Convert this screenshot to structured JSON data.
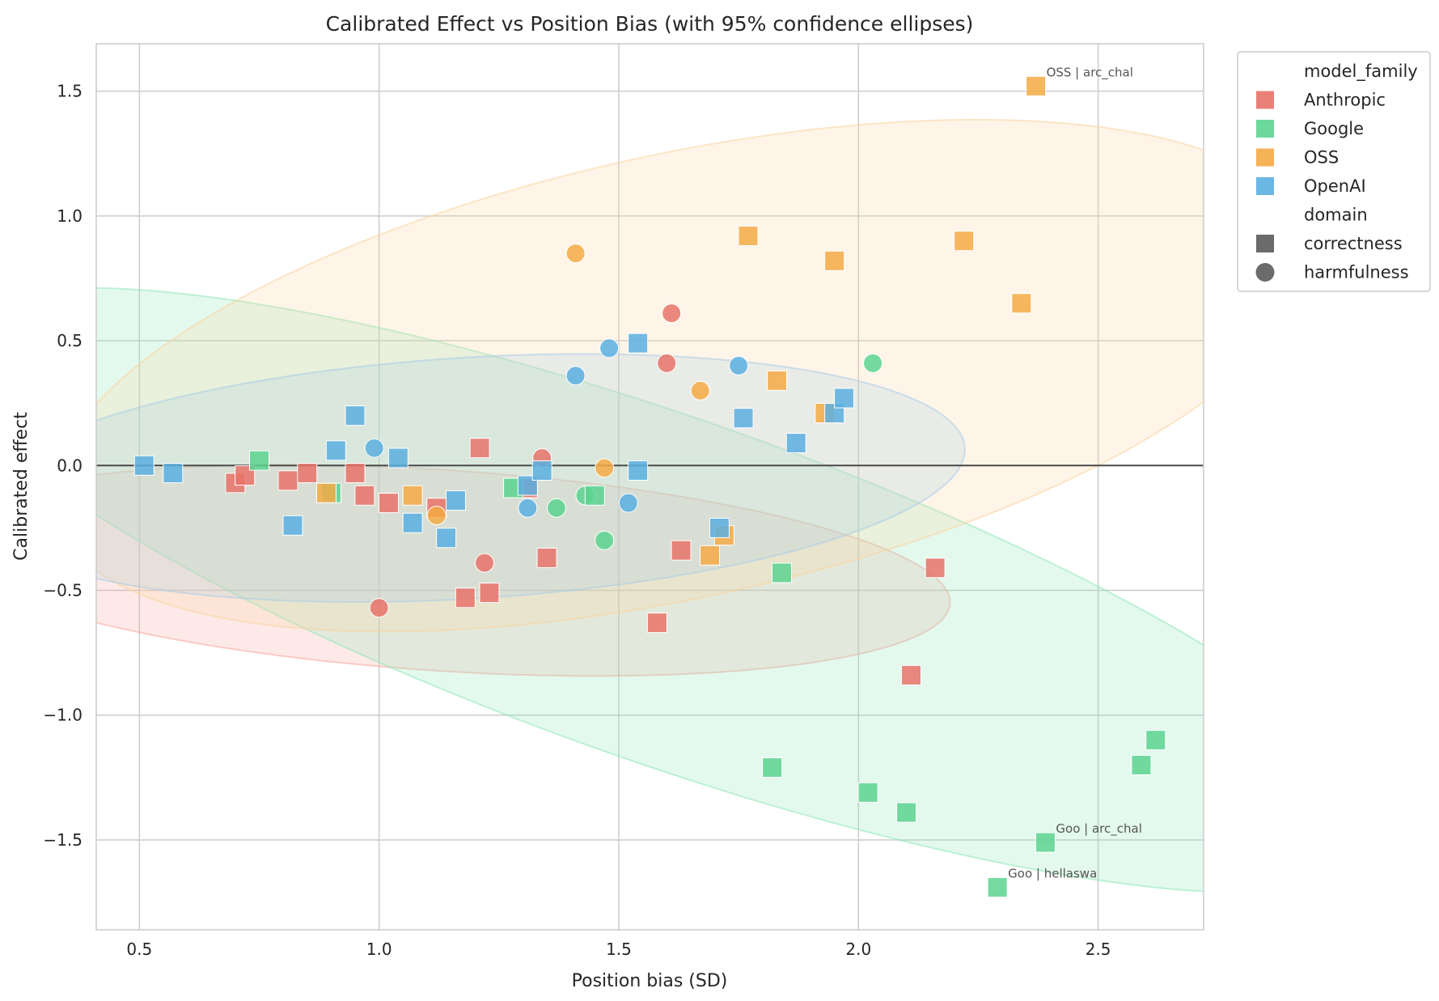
{
  "chart_data": {
    "type": "scatter",
    "title": "Calibrated Effect vs Position Bias (with 95% confidence ellipses)",
    "xlabel": "Position bias (SD)",
    "ylabel": "Calibrated effect",
    "xlim": [
      0.41,
      2.72
    ],
    "ylim": [
      -1.86,
      1.69
    ],
    "xticks": [
      0.5,
      1.0,
      1.5,
      2.0,
      2.5
    ],
    "xtick_labels": [
      "0.5",
      "1.0",
      "1.5",
      "2.0",
      "2.5"
    ],
    "yticks": [
      -1.5,
      -1.0,
      -0.5,
      0.0,
      0.5,
      1.0,
      1.5
    ],
    "ytick_labels": [
      "−1.5",
      "−1.0",
      "−0.5",
      "0.0",
      "0.5",
      "1.0",
      "1.5"
    ],
    "grid": true,
    "reference_line_y": 0,
    "legend_placement": "outside-top-right",
    "legend": {
      "hue_title": "model_family",
      "style_title": "domain",
      "hue_entries": [
        {
          "name": "Anthropic",
          "color": "#E8736A"
        },
        {
          "name": "Google",
          "color": "#5CD48F"
        },
        {
          "name": "OSS",
          "color": "#F5AA45"
        },
        {
          "name": "OpenAI",
          "color": "#5BAFE0"
        }
      ],
      "style_entries": [
        {
          "name": "correctness",
          "marker": "square"
        },
        {
          "name": "harmfulness",
          "marker": "circle"
        }
      ]
    },
    "ellipses": [
      {
        "family": "Anthropic",
        "color": "#F8A8A0",
        "center": [
          1.13,
          -0.42
        ],
        "semi_major": 1.07,
        "semi_minor": 0.4,
        "angle_deg": -8
      },
      {
        "family": "Google",
        "color": "#8FE8B8",
        "center": [
          1.6,
          -0.5
        ],
        "semi_major": 1.85,
        "semi_minor": 0.6,
        "angle_deg": -37
      },
      {
        "family": "OSS",
        "color": "#FAD4A0",
        "center": [
          1.63,
          0.36
        ],
        "semi_major": 1.45,
        "semi_minor": 0.82,
        "angle_deg": 31
      },
      {
        "family": "OpenAI",
        "color": "#A8CCE8",
        "center": [
          1.19,
          -0.05
        ],
        "semi_major": 1.04,
        "semi_minor": 0.48,
        "angle_deg": 8
      }
    ],
    "series": [
      {
        "name": "Anthropic",
        "color": "#E8736A",
        "points": [
          {
            "x": 1.61,
            "y": 0.61,
            "marker": "circle"
          },
          {
            "x": 1.6,
            "y": 0.41,
            "marker": "circle"
          },
          {
            "x": 1.34,
            "y": 0.03,
            "marker": "circle"
          },
          {
            "x": 1.22,
            "y": -0.39,
            "marker": "circle"
          },
          {
            "x": 1.0,
            "y": -0.57,
            "marker": "circle"
          },
          {
            "x": 0.7,
            "y": -0.07,
            "marker": "square"
          },
          {
            "x": 0.72,
            "y": -0.04,
            "marker": "square"
          },
          {
            "x": 0.81,
            "y": -0.06,
            "marker": "square"
          },
          {
            "x": 0.85,
            "y": -0.03,
            "marker": "square"
          },
          {
            "x": 0.95,
            "y": -0.03,
            "marker": "square"
          },
          {
            "x": 0.97,
            "y": -0.12,
            "marker": "square"
          },
          {
            "x": 1.02,
            "y": -0.15,
            "marker": "square"
          },
          {
            "x": 1.12,
            "y": -0.17,
            "marker": "square"
          },
          {
            "x": 1.21,
            "y": 0.07,
            "marker": "square"
          },
          {
            "x": 1.31,
            "y": -0.09,
            "marker": "square"
          },
          {
            "x": 1.35,
            "y": -0.37,
            "marker": "square"
          },
          {
            "x": 1.23,
            "y": -0.51,
            "marker": "square"
          },
          {
            "x": 1.18,
            "y": -0.53,
            "marker": "square"
          },
          {
            "x": 1.58,
            "y": -0.63,
            "marker": "square"
          },
          {
            "x": 1.63,
            "y": -0.34,
            "marker": "square"
          },
          {
            "x": 2.16,
            "y": -0.41,
            "marker": "square"
          },
          {
            "x": 2.11,
            "y": -0.84,
            "marker": "square"
          }
        ]
      },
      {
        "name": "Google",
        "color": "#5CD48F",
        "points": [
          {
            "x": 2.03,
            "y": 0.41,
            "marker": "circle"
          },
          {
            "x": 1.37,
            "y": -0.17,
            "marker": "circle"
          },
          {
            "x": 1.43,
            "y": -0.12,
            "marker": "circle"
          },
          {
            "x": 1.47,
            "y": -0.3,
            "marker": "circle"
          },
          {
            "x": 0.75,
            "y": 0.02,
            "marker": "square"
          },
          {
            "x": 0.9,
            "y": -0.11,
            "marker": "square"
          },
          {
            "x": 1.28,
            "y": -0.09,
            "marker": "square"
          },
          {
            "x": 1.45,
            "y": -0.12,
            "marker": "square"
          },
          {
            "x": 1.84,
            "y": -0.43,
            "marker": "square"
          },
          {
            "x": 1.82,
            "y": -1.21,
            "marker": "square"
          },
          {
            "x": 2.02,
            "y": -1.31,
            "marker": "square"
          },
          {
            "x": 2.1,
            "y": -1.39,
            "marker": "square"
          },
          {
            "x": 2.59,
            "y": -1.2,
            "marker": "square"
          },
          {
            "x": 2.62,
            "y": -1.1,
            "marker": "square"
          },
          {
            "x": 2.39,
            "y": -1.51,
            "marker": "square",
            "annotation": "Goo | arc_chal"
          },
          {
            "x": 2.29,
            "y": -1.69,
            "marker": "square",
            "annotation": "Goo | hellaswa"
          }
        ]
      },
      {
        "name": "OSS",
        "color": "#F5AA45",
        "points": [
          {
            "x": 1.41,
            "y": 0.85,
            "marker": "circle"
          },
          {
            "x": 1.67,
            "y": 0.3,
            "marker": "circle"
          },
          {
            "x": 1.47,
            "y": -0.01,
            "marker": "circle"
          },
          {
            "x": 1.12,
            "y": -0.2,
            "marker": "circle"
          },
          {
            "x": 0.89,
            "y": -0.11,
            "marker": "square"
          },
          {
            "x": 1.07,
            "y": -0.12,
            "marker": "square"
          },
          {
            "x": 1.69,
            "y": -0.36,
            "marker": "square"
          },
          {
            "x": 1.72,
            "y": -0.28,
            "marker": "square"
          },
          {
            "x": 1.77,
            "y": 0.92,
            "marker": "square"
          },
          {
            "x": 1.95,
            "y": 0.82,
            "marker": "square"
          },
          {
            "x": 2.22,
            "y": 0.9,
            "marker": "square"
          },
          {
            "x": 2.34,
            "y": 0.65,
            "marker": "square"
          },
          {
            "x": 1.83,
            "y": 0.34,
            "marker": "square"
          },
          {
            "x": 1.93,
            "y": 0.21,
            "marker": "square"
          },
          {
            "x": 2.37,
            "y": 1.52,
            "marker": "square",
            "annotation": "OSS | arc_chal"
          }
        ]
      },
      {
        "name": "OpenAI",
        "color": "#5BAFE0",
        "points": [
          {
            "x": 1.48,
            "y": 0.47,
            "marker": "circle"
          },
          {
            "x": 1.41,
            "y": 0.36,
            "marker": "circle"
          },
          {
            "x": 1.75,
            "y": 0.4,
            "marker": "circle"
          },
          {
            "x": 0.99,
            "y": 0.07,
            "marker": "circle"
          },
          {
            "x": 1.31,
            "y": -0.17,
            "marker": "circle"
          },
          {
            "x": 1.52,
            "y": -0.15,
            "marker": "circle"
          },
          {
            "x": 0.51,
            "y": 0.0,
            "marker": "square"
          },
          {
            "x": 0.57,
            "y": -0.03,
            "marker": "square"
          },
          {
            "x": 0.82,
            "y": -0.24,
            "marker": "square"
          },
          {
            "x": 0.91,
            "y": 0.06,
            "marker": "square"
          },
          {
            "x": 0.95,
            "y": 0.2,
            "marker": "square"
          },
          {
            "x": 1.04,
            "y": 0.03,
            "marker": "square"
          },
          {
            "x": 1.07,
            "y": -0.23,
            "marker": "square"
          },
          {
            "x": 1.14,
            "y": -0.29,
            "marker": "square"
          },
          {
            "x": 1.16,
            "y": -0.14,
            "marker": "square"
          },
          {
            "x": 1.31,
            "y": -0.08,
            "marker": "square"
          },
          {
            "x": 1.34,
            "y": -0.02,
            "marker": "square"
          },
          {
            "x": 1.54,
            "y": 0.49,
            "marker": "square"
          },
          {
            "x": 1.54,
            "y": -0.02,
            "marker": "square"
          },
          {
            "x": 1.71,
            "y": -0.25,
            "marker": "square"
          },
          {
            "x": 1.76,
            "y": 0.19,
            "marker": "square"
          },
          {
            "x": 1.87,
            "y": 0.09,
            "marker": "square"
          },
          {
            "x": 1.95,
            "y": 0.21,
            "marker": "square"
          },
          {
            "x": 1.97,
            "y": 0.27,
            "marker": "square"
          }
        ]
      }
    ]
  }
}
